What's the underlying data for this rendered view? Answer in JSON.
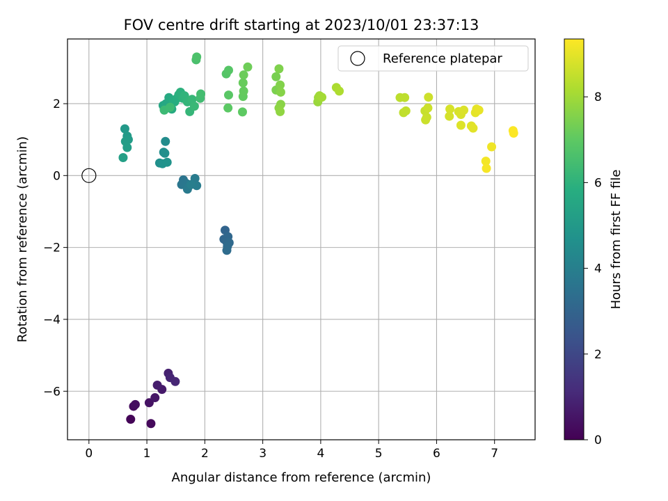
{
  "chart_data": {
    "type": "scatter",
    "title": "FOV centre drift starting at 2023/10/01 23:37:13",
    "xlabel": "Angular distance from reference (arcmin)",
    "ylabel": "Rotation from reference (arcmin)",
    "xlim": [
      -0.37,
      7.7
    ],
    "ylim": [
      -7.35,
      3.8
    ],
    "xticks": [
      "0",
      "1",
      "2",
      "3",
      "4",
      "5",
      "6",
      "7"
    ],
    "yticks": [
      "−6",
      "−4",
      "−2",
      "0",
      "2"
    ],
    "grid": true,
    "legend": {
      "placement": "top-right",
      "entries": [
        "Reference platepar"
      ]
    },
    "colorbar": {
      "label": "Hours from first FF file",
      "range": [
        0,
        9.35
      ],
      "ticks": [
        "0",
        "2",
        "4",
        "6",
        "8"
      ],
      "colormap": "viridis"
    },
    "reference_point": {
      "x": 0,
      "y": 0
    },
    "points": [
      {
        "x": 0.72,
        "y": -6.78,
        "h": 0.1
      },
      {
        "x": 1.07,
        "y": -6.9,
        "h": 0.2
      },
      {
        "x": 0.77,
        "y": -6.42,
        "h": 0.3
      },
      {
        "x": 0.8,
        "y": -6.37,
        "h": 0.35
      },
      {
        "x": 1.04,
        "y": -6.32,
        "h": 0.45
      },
      {
        "x": 1.14,
        "y": -6.18,
        "h": 0.55
      },
      {
        "x": 1.26,
        "y": -5.95,
        "h": 0.65
      },
      {
        "x": 1.18,
        "y": -5.83,
        "h": 0.75
      },
      {
        "x": 1.37,
        "y": -5.5,
        "h": 0.85
      },
      {
        "x": 1.4,
        "y": -5.62,
        "h": 0.95
      },
      {
        "x": 1.49,
        "y": -5.73,
        "h": 1.0
      },
      {
        "x": 2.35,
        "y": -1.52,
        "h": 3.0
      },
      {
        "x": 2.33,
        "y": -1.77,
        "h": 3.05
      },
      {
        "x": 2.4,
        "y": -1.7,
        "h": 3.1
      },
      {
        "x": 2.38,
        "y": -1.85,
        "h": 3.15
      },
      {
        "x": 2.42,
        "y": -1.87,
        "h": 3.2
      },
      {
        "x": 2.39,
        "y": -1.97,
        "h": 3.25
      },
      {
        "x": 2.38,
        "y": -2.08,
        "h": 3.3
      },
      {
        "x": 1.63,
        "y": -0.12,
        "h": 3.6
      },
      {
        "x": 1.6,
        "y": -0.25,
        "h": 3.65
      },
      {
        "x": 1.68,
        "y": -0.22,
        "h": 3.7
      },
      {
        "x": 1.72,
        "y": -0.3,
        "h": 3.75
      },
      {
        "x": 1.7,
        "y": -0.38,
        "h": 3.8
      },
      {
        "x": 1.83,
        "y": -0.08,
        "h": 3.85
      },
      {
        "x": 1.86,
        "y": -0.28,
        "h": 3.9
      },
      {
        "x": 1.76,
        "y": -0.25,
        "h": 3.95
      },
      {
        "x": 1.32,
        "y": 0.95,
        "h": 4.5
      },
      {
        "x": 1.29,
        "y": 0.65,
        "h": 4.55
      },
      {
        "x": 1.31,
        "y": 0.62,
        "h": 4.6
      },
      {
        "x": 1.22,
        "y": 0.35,
        "h": 4.65
      },
      {
        "x": 1.27,
        "y": 0.33,
        "h": 4.7
      },
      {
        "x": 1.35,
        "y": 0.37,
        "h": 4.75
      },
      {
        "x": 0.62,
        "y": 1.3,
        "h": 5.0
      },
      {
        "x": 0.66,
        "y": 1.1,
        "h": 5.05
      },
      {
        "x": 0.68,
        "y": 1.0,
        "h": 5.1
      },
      {
        "x": 0.63,
        "y": 0.95,
        "h": 5.15
      },
      {
        "x": 0.66,
        "y": 0.78,
        "h": 5.2
      },
      {
        "x": 0.59,
        "y": 0.5,
        "h": 5.25
      },
      {
        "x": 1.3,
        "y": 1.85,
        "h": 5.5
      },
      {
        "x": 1.28,
        "y": 1.95,
        "h": 5.55
      },
      {
        "x": 1.33,
        "y": 2.0,
        "h": 5.6
      },
      {
        "x": 1.38,
        "y": 2.17,
        "h": 5.65
      },
      {
        "x": 1.43,
        "y": 1.85,
        "h": 5.7
      },
      {
        "x": 1.45,
        "y": 2.1,
        "h": 5.75
      },
      {
        "x": 1.48,
        "y": 2.05,
        "h": 5.8
      },
      {
        "x": 1.52,
        "y": 2.15,
        "h": 5.85
      },
      {
        "x": 1.55,
        "y": 2.25,
        "h": 5.9
      },
      {
        "x": 1.58,
        "y": 2.32,
        "h": 5.95
      },
      {
        "x": 1.62,
        "y": 2.15,
        "h": 6.0
      },
      {
        "x": 1.65,
        "y": 2.22,
        "h": 6.05
      },
      {
        "x": 1.7,
        "y": 2.05,
        "h": 6.1
      },
      {
        "x": 1.74,
        "y": 1.78,
        "h": 6.15
      },
      {
        "x": 1.78,
        "y": 2.12,
        "h": 6.2
      },
      {
        "x": 1.82,
        "y": 1.93,
        "h": 6.25
      },
      {
        "x": 1.3,
        "y": 1.82,
        "h": 6.3
      },
      {
        "x": 1.4,
        "y": 1.9,
        "h": 6.35
      },
      {
        "x": 1.92,
        "y": 2.15,
        "h": 6.4
      },
      {
        "x": 1.93,
        "y": 2.27,
        "h": 6.45
      },
      {
        "x": 1.85,
        "y": 3.22,
        "h": 6.6
      },
      {
        "x": 1.86,
        "y": 3.3,
        "h": 6.65
      },
      {
        "x": 2.37,
        "y": 2.83,
        "h": 6.8
      },
      {
        "x": 2.41,
        "y": 2.93,
        "h": 6.85
      },
      {
        "x": 2.41,
        "y": 2.24,
        "h": 6.9
      },
      {
        "x": 2.4,
        "y": 1.88,
        "h": 6.95
      },
      {
        "x": 2.65,
        "y": 1.77,
        "h": 7.0
      },
      {
        "x": 2.66,
        "y": 2.2,
        "h": 7.05
      },
      {
        "x": 2.67,
        "y": 2.35,
        "h": 7.1
      },
      {
        "x": 2.66,
        "y": 2.58,
        "h": 7.15
      },
      {
        "x": 2.67,
        "y": 2.8,
        "h": 7.2
      },
      {
        "x": 2.74,
        "y": 3.02,
        "h": 7.25
      },
      {
        "x": 3.23,
        "y": 2.75,
        "h": 7.4
      },
      {
        "x": 3.23,
        "y": 2.38,
        "h": 7.45
      },
      {
        "x": 3.28,
        "y": 2.97,
        "h": 7.5
      },
      {
        "x": 3.3,
        "y": 2.52,
        "h": 7.55
      },
      {
        "x": 3.31,
        "y": 2.32,
        "h": 7.6
      },
      {
        "x": 3.31,
        "y": 1.98,
        "h": 7.65
      },
      {
        "x": 3.28,
        "y": 1.88,
        "h": 7.7
      },
      {
        "x": 3.3,
        "y": 1.78,
        "h": 7.75
      },
      {
        "x": 3.95,
        "y": 2.05,
        "h": 7.9
      },
      {
        "x": 3.96,
        "y": 2.17,
        "h": 7.95
      },
      {
        "x": 3.98,
        "y": 2.22,
        "h": 8.0
      },
      {
        "x": 4.02,
        "y": 2.18,
        "h": 8.05
      },
      {
        "x": 4.27,
        "y": 2.45,
        "h": 8.15
      },
      {
        "x": 4.32,
        "y": 2.35,
        "h": 8.2
      },
      {
        "x": 5.37,
        "y": 2.17,
        "h": 8.4
      },
      {
        "x": 5.45,
        "y": 2.17,
        "h": 8.42
      },
      {
        "x": 5.43,
        "y": 1.75,
        "h": 8.45
      },
      {
        "x": 5.47,
        "y": 1.8,
        "h": 8.48
      },
      {
        "x": 5.8,
        "y": 1.8,
        "h": 8.55
      },
      {
        "x": 5.83,
        "y": 1.62,
        "h": 8.58
      },
      {
        "x": 5.81,
        "y": 1.55,
        "h": 8.6
      },
      {
        "x": 5.85,
        "y": 1.88,
        "h": 8.62
      },
      {
        "x": 5.86,
        "y": 2.18,
        "h": 8.65
      },
      {
        "x": 6.22,
        "y": 1.65,
        "h": 8.75
      },
      {
        "x": 6.23,
        "y": 1.85,
        "h": 8.78
      },
      {
        "x": 6.38,
        "y": 1.78,
        "h": 8.8
      },
      {
        "x": 6.42,
        "y": 1.7,
        "h": 8.82
      },
      {
        "x": 6.47,
        "y": 1.82,
        "h": 8.85
      },
      {
        "x": 6.42,
        "y": 1.4,
        "h": 8.88
      },
      {
        "x": 6.6,
        "y": 1.38,
        "h": 8.92
      },
      {
        "x": 6.63,
        "y": 1.32,
        "h": 8.95
      },
      {
        "x": 6.67,
        "y": 1.75,
        "h": 8.98
      },
      {
        "x": 6.69,
        "y": 1.85,
        "h": 9.0
      },
      {
        "x": 6.73,
        "y": 1.82,
        "h": 9.05
      },
      {
        "x": 6.95,
        "y": 0.8,
        "h": 9.15
      },
      {
        "x": 6.85,
        "y": 0.4,
        "h": 9.2
      },
      {
        "x": 6.86,
        "y": 0.2,
        "h": 9.25
      },
      {
        "x": 7.32,
        "y": 1.25,
        "h": 9.3
      },
      {
        "x": 7.33,
        "y": 1.18,
        "h": 9.33
      }
    ]
  }
}
